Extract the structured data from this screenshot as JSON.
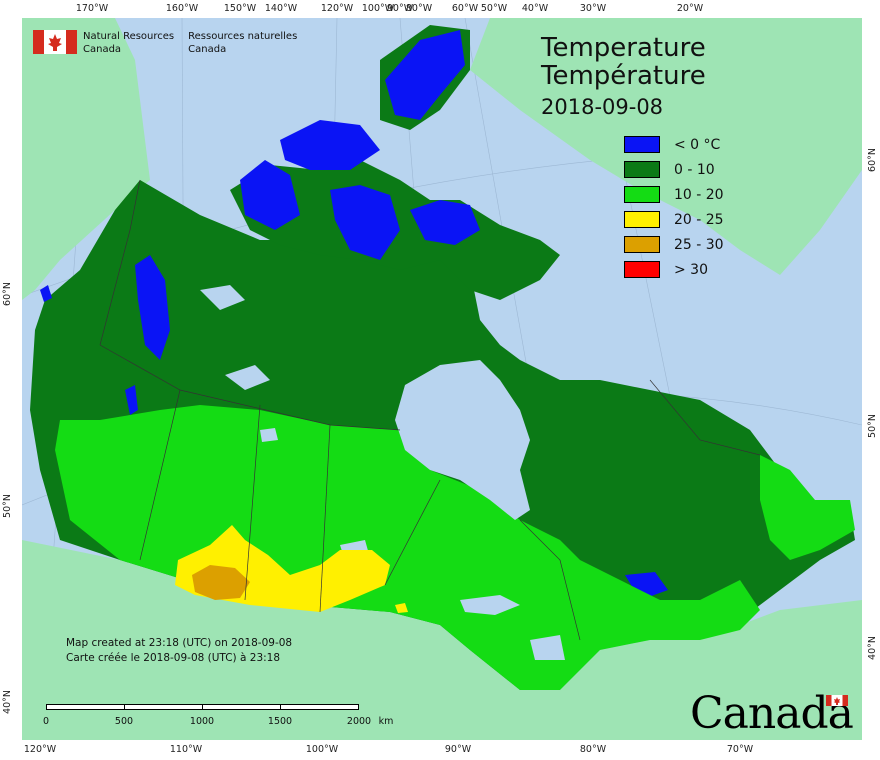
{
  "title": {
    "line1": "Temperature",
    "line2": "Température",
    "date": "2018-09-08"
  },
  "legend": [
    {
      "label": "< 0 °C",
      "color": "#0a14f5"
    },
    {
      "label": "0 - 10",
      "color": "#0b7a16"
    },
    {
      "label": "10 - 20",
      "color": "#14dc14"
    },
    {
      "label": "20 - 25",
      "color": "#fff000"
    },
    {
      "label": "25 - 30",
      "color": "#dca000"
    },
    {
      "label": "> 30",
      "color": "#ff0000"
    }
  ],
  "agency": {
    "en_line1": "Natural Resources",
    "en_line2": "Canada",
    "fr_line1": "Ressources naturelles",
    "fr_line2": "Canada"
  },
  "credits": {
    "en": "Map created at 23:18 (UTC) on 2018-09-08",
    "fr": "Carte créée le 2018-09-08 (UTC) à 23:18"
  },
  "scale": {
    "labels": [
      "0",
      "500",
      "1000",
      "1500",
      "2000"
    ],
    "unit": "km"
  },
  "wordmark": "Canada",
  "graticule": {
    "top": [
      "170°W",
      "160°W",
      "150°W",
      "140°W",
      "120°W",
      "100°W",
      "90°W",
      "80°W",
      "60°W",
      "50°W",
      "40°W",
      "30°W",
      "20°W"
    ],
    "bottom": [
      "120°W",
      "110°W",
      "100°W",
      "90°W",
      "80°W",
      "70°W"
    ],
    "left": [
      "60°N",
      "50°N",
      "40°N"
    ],
    "right": [
      "60°N",
      "50°N",
      "40°N"
    ]
  },
  "colors": {
    "ocean": "#b8d4ef",
    "foreign_land": "#9ee4b4",
    "border": "#333333"
  }
}
